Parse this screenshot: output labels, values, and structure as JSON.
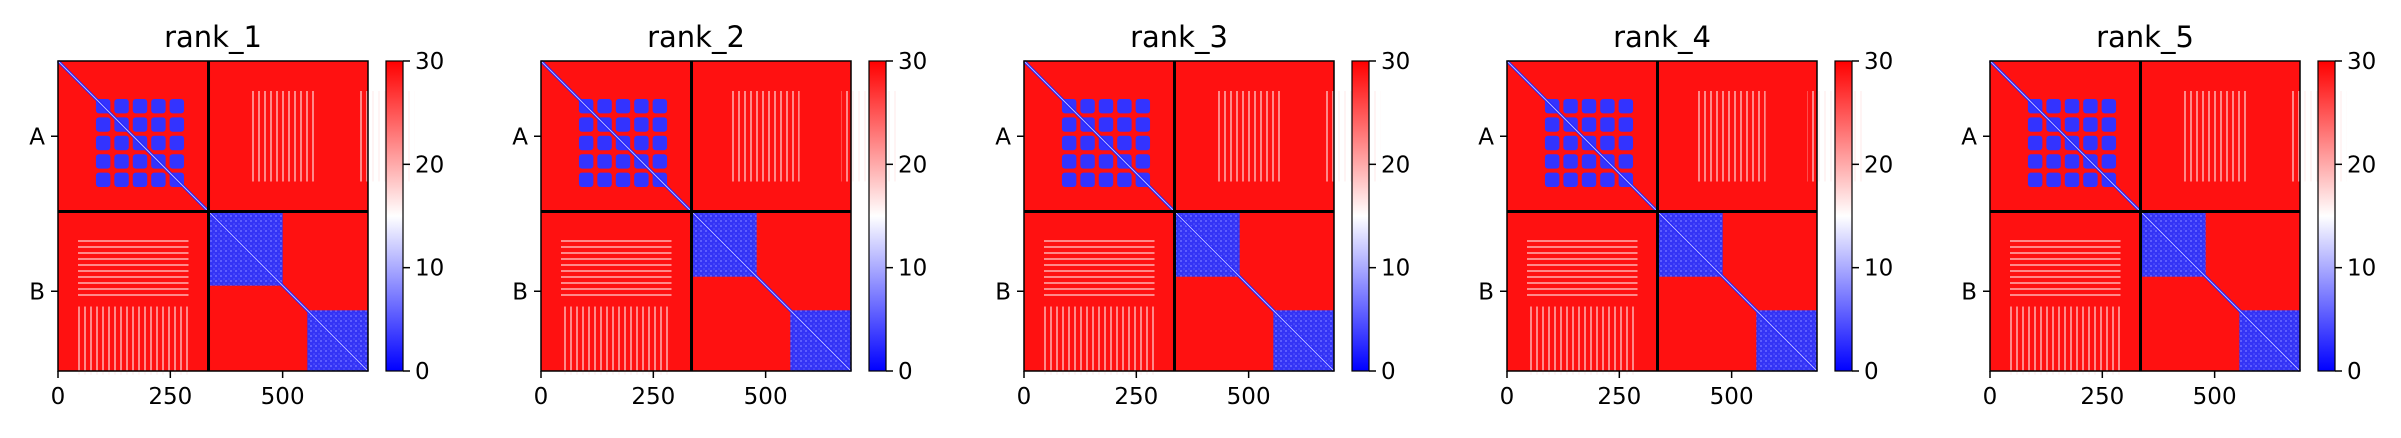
{
  "chart_data": [
    {
      "type": "heatmap",
      "title": "rank_1",
      "matrix_size": 690,
      "chains": [
        {
          "label": "A",
          "start": 0,
          "end": 335
        },
        {
          "label": "B",
          "start": 335,
          "end": 690
        }
      ],
      "xticks": [
        0,
        250,
        500
      ],
      "xtick_labels": [
        "0",
        "250",
        "500"
      ],
      "colorbar": {
        "min": 0,
        "max": 30,
        "ticks": [
          "0",
          "10",
          "20",
          "30"
        ],
        "colormap": "bwr"
      },
      "blocks": [
        {
          "region": "A-A diagonal subdomain",
          "x": [
            80,
            285
          ],
          "y": [
            80,
            285
          ],
          "value": 3
        },
        {
          "region": "B-B domain 1",
          "x": [
            335,
            500
          ],
          "y": [
            335,
            500
          ],
          "value": 4
        },
        {
          "region": "B-B domain 2",
          "x": [
            555,
            690
          ],
          "y": [
            555,
            690
          ],
          "value": 4
        },
        {
          "region": "inter-chain A-B",
          "x": [
            0,
            690
          ],
          "y": [
            0,
            690
          ],
          "value": 29
        }
      ]
    },
    {
      "type": "heatmap",
      "title": "rank_2",
      "matrix_size": 690,
      "chains": [
        {
          "label": "A",
          "start": 0,
          "end": 335
        },
        {
          "label": "B",
          "start": 335,
          "end": 690
        }
      ],
      "xticks": [
        0,
        250,
        500
      ],
      "xtick_labels": [
        "0",
        "250",
        "500"
      ],
      "colorbar": {
        "min": 0,
        "max": 30,
        "ticks": [
          "0",
          "10",
          "20",
          "30"
        ],
        "colormap": "bwr"
      },
      "blocks": [
        {
          "region": "A-A diagonal subdomain",
          "x": [
            80,
            285
          ],
          "y": [
            80,
            285
          ],
          "value": 3
        },
        {
          "region": "B-B domain 1",
          "x": [
            335,
            480
          ],
          "y": [
            335,
            480
          ],
          "value": 4
        },
        {
          "region": "B-B domain 2",
          "x": [
            555,
            690
          ],
          "y": [
            555,
            690
          ],
          "value": 4
        },
        {
          "region": "inter-chain A-B",
          "x": [
            0,
            690
          ],
          "y": [
            0,
            690
          ],
          "value": 29
        }
      ]
    },
    {
      "type": "heatmap",
      "title": "rank_3",
      "matrix_size": 690,
      "chains": [
        {
          "label": "A",
          "start": 0,
          "end": 335
        },
        {
          "label": "B",
          "start": 335,
          "end": 690
        }
      ],
      "xticks": [
        0,
        250,
        500
      ],
      "xtick_labels": [
        "0",
        "250",
        "500"
      ],
      "colorbar": {
        "min": 0,
        "max": 30,
        "ticks": [
          "0",
          "10",
          "20",
          "30"
        ],
        "colormap": "bwr"
      },
      "blocks": [
        {
          "region": "A-A diagonal subdomain",
          "x": [
            80,
            285
          ],
          "y": [
            80,
            285
          ],
          "value": 3
        },
        {
          "region": "B-B domain 1",
          "x": [
            335,
            480
          ],
          "y": [
            335,
            480
          ],
          "value": 4
        },
        {
          "region": "B-B domain 2",
          "x": [
            555,
            690
          ],
          "y": [
            555,
            690
          ],
          "value": 4
        },
        {
          "region": "inter-chain A-B",
          "x": [
            0,
            690
          ],
          "y": [
            0,
            690
          ],
          "value": 29
        }
      ]
    },
    {
      "type": "heatmap",
      "title": "rank_4",
      "matrix_size": 690,
      "chains": [
        {
          "label": "A",
          "start": 0,
          "end": 335
        },
        {
          "label": "B",
          "start": 335,
          "end": 690
        }
      ],
      "xticks": [
        0,
        250,
        500
      ],
      "xtick_labels": [
        "0",
        "250",
        "500"
      ],
      "colorbar": {
        "min": 0,
        "max": 30,
        "ticks": [
          "0",
          "10",
          "20",
          "30"
        ],
        "colormap": "bwr"
      },
      "blocks": [
        {
          "region": "A-A diagonal subdomain",
          "x": [
            80,
            285
          ],
          "y": [
            80,
            285
          ],
          "value": 3
        },
        {
          "region": "B-B domain 1",
          "x": [
            335,
            480
          ],
          "y": [
            335,
            480
          ],
          "value": 4
        },
        {
          "region": "B-B domain 2",
          "x": [
            555,
            690
          ],
          "y": [
            555,
            690
          ],
          "value": 4
        },
        {
          "region": "inter-chain A-B",
          "x": [
            0,
            690
          ],
          "y": [
            0,
            690
          ],
          "value": 29
        }
      ]
    },
    {
      "type": "heatmap",
      "title": "rank_5",
      "matrix_size": 690,
      "chains": [
        {
          "label": "A",
          "start": 0,
          "end": 335
        },
        {
          "label": "B",
          "start": 335,
          "end": 690
        }
      ],
      "xticks": [
        0,
        250,
        500
      ],
      "xtick_labels": [
        "0",
        "250",
        "500"
      ],
      "colorbar": {
        "min": 0,
        "max": 30,
        "ticks": [
          "0",
          "10",
          "20",
          "30"
        ],
        "colormap": "bwr"
      },
      "blocks": [
        {
          "region": "A-A diagonal subdomain",
          "x": [
            80,
            285
          ],
          "y": [
            80,
            285
          ],
          "value": 3
        },
        {
          "region": "B-B domain 1",
          "x": [
            335,
            480
          ],
          "y": [
            335,
            480
          ],
          "value": 4
        },
        {
          "region": "B-B domain 2",
          "x": [
            555,
            690
          ],
          "y": [
            555,
            690
          ],
          "value": 4
        },
        {
          "region": "inter-chain A-B",
          "x": [
            0,
            690
          ],
          "y": [
            0,
            690
          ],
          "value": 29
        }
      ]
    }
  ]
}
